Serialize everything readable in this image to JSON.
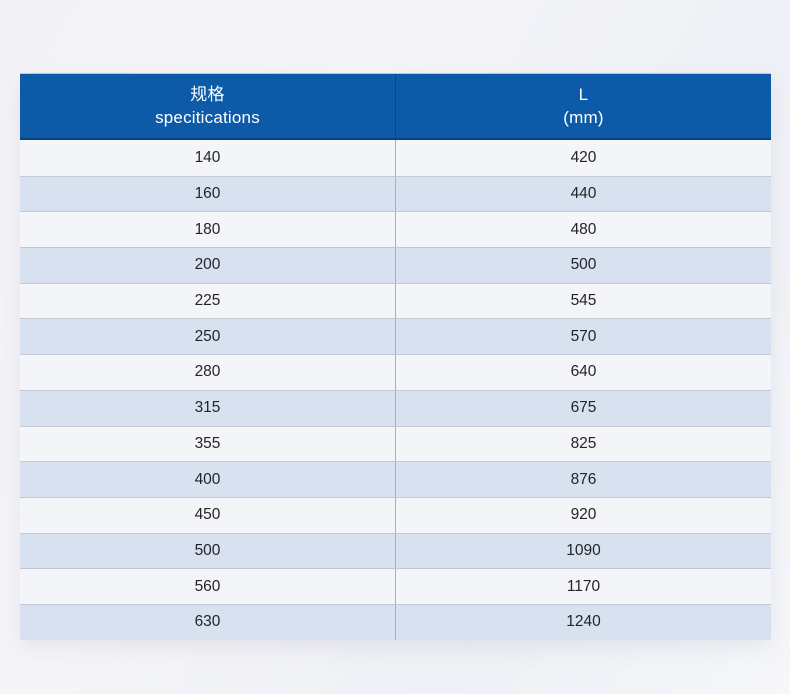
{
  "chart_data": {
    "type": "table",
    "columns": [
      {
        "line1": "规格",
        "line2": "specitications"
      },
      {
        "line1": "L",
        "line2": "(mm)"
      }
    ],
    "rows": [
      [
        "140",
        "420"
      ],
      [
        "160",
        "440"
      ],
      [
        "180",
        "480"
      ],
      [
        "200",
        "500"
      ],
      [
        "225",
        "545"
      ],
      [
        "250",
        "570"
      ],
      [
        "280",
        "640"
      ],
      [
        "315",
        "675"
      ],
      [
        "355",
        "825"
      ],
      [
        "400",
        "876"
      ],
      [
        "450",
        "920"
      ],
      [
        "500",
        "1090"
      ],
      [
        "560",
        "1170"
      ],
      [
        "630",
        "1240"
      ]
    ],
    "layout_hints": {
      "header_position": "top",
      "zebra_striping": true,
      "column_count": 2,
      "row_count": 14
    }
  },
  "colors": {
    "header_background": "#0d5ba8",
    "header_border_bottom": "#0a4279",
    "header_text": "#ffffff",
    "row_light": "#f4f5f9",
    "row_blue": "#d7e1ef",
    "row_divider": "#c3c8d2",
    "column_divider": "#a8adb6",
    "body_text": "#232428",
    "page_background": "#f2f2f7"
  }
}
